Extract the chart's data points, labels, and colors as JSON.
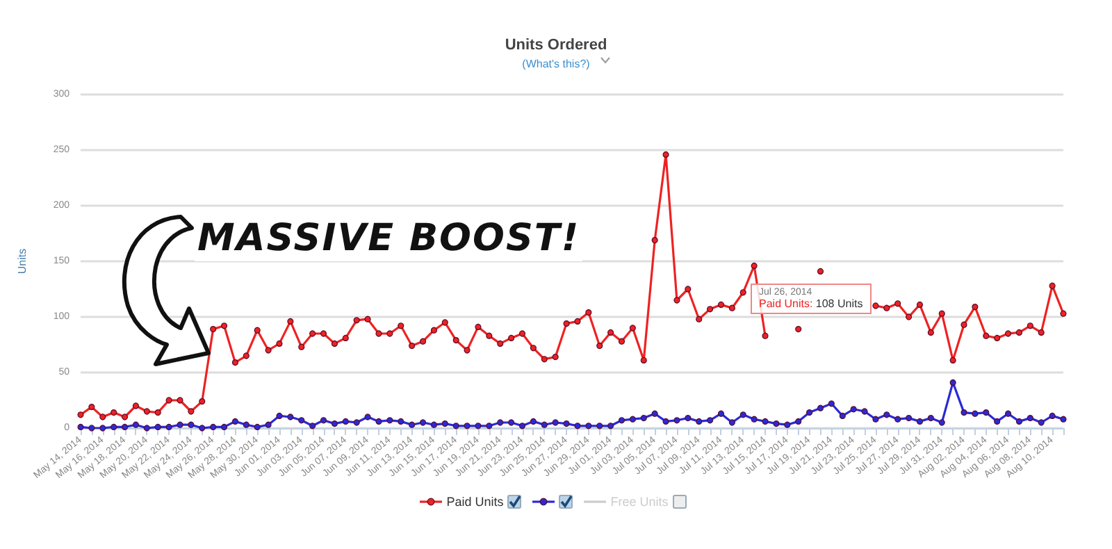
{
  "chart_data": {
    "type": "line",
    "title": "Units Ordered",
    "subtitle": "(What's this?)",
    "ylabel": "Units",
    "categories": [
      "May 14, 2014",
      null,
      "May 16, 2014",
      null,
      "May 18, 2014",
      null,
      "May 20, 2014",
      null,
      "May 22, 2014",
      null,
      "May 24, 2014",
      null,
      "May 26, 2014",
      null,
      "May 28, 2014",
      null,
      "May 30, 2014",
      null,
      "Jun 01, 2014",
      null,
      "Jun 03, 2014",
      null,
      "Jun 05, 2014",
      null,
      "Jun 07, 2014",
      null,
      "Jun 09, 2014",
      null,
      "Jun 11, 2014",
      null,
      "Jun 13, 2014",
      null,
      "Jun 15, 2014",
      null,
      "Jun 17, 2014",
      null,
      "Jun 19, 2014",
      null,
      "Jun 21, 2014",
      null,
      "Jun 23, 2014",
      null,
      "Jun 25, 2014",
      null,
      "Jun 27, 2014",
      null,
      "Jun 29, 2014",
      null,
      "Jul 01, 2014",
      null,
      "Jul 03, 2014",
      null,
      "Jul 05, 2014",
      null,
      "Jul 07, 2014",
      null,
      "Jul 09, 2014",
      null,
      "Jul 11, 2014",
      null,
      "Jul 13, 2014",
      null,
      "Jul 15, 2014",
      null,
      "Jul 17, 2014",
      null,
      "Jul 19, 2014",
      null,
      "Jul 21, 2014",
      null,
      "Jul 23, 2014",
      null,
      "Jul 25, 2014",
      null,
      "Jul 27, 2014",
      null,
      "Jul 29, 2014",
      null,
      "Jul 31, 2014",
      null,
      "Aug 02, 2014",
      null,
      "Aug 04, 2014",
      null,
      "Aug 06, 2014",
      null,
      "Aug 08, 2014",
      null,
      "Aug 10, 2014",
      null
    ],
    "series": [
      {
        "name": "Paid Units",
        "color": "#ee2222",
        "values": [
          12,
          19,
          10,
          14,
          10,
          20,
          15,
          14,
          25,
          25,
          15,
          24,
          89,
          92,
          59,
          65,
          88,
          70,
          76,
          96,
          73,
          85,
          85,
          76,
          81,
          97,
          98,
          85,
          85,
          92,
          74,
          78,
          88,
          95,
          79,
          70,
          91,
          83,
          76,
          81,
          85,
          72,
          62,
          64,
          94,
          96,
          104,
          74,
          86,
          78,
          90,
          61,
          169,
          246,
          115,
          125,
          98,
          107,
          111,
          108,
          122,
          146,
          83,
          null,
          null,
          89,
          null,
          141,
          null,
          null,
          null,
          null,
          110,
          108,
          112,
          100,
          111,
          86,
          103,
          61,
          93,
          109,
          83,
          81,
          85,
          86,
          92,
          86,
          128,
          103
        ]
      },
      {
        "color": "#2a2ad8",
        "values": [
          1,
          0,
          0,
          1,
          1,
          3,
          0,
          1,
          1,
          3,
          3,
          0,
          1,
          1,
          6,
          3,
          1,
          3,
          11,
          10,
          7,
          2,
          7,
          4,
          6,
          5,
          10,
          6,
          7,
          6,
          3,
          5,
          3,
          4,
          2,
          2,
          2,
          2,
          5,
          5,
          2,
          6,
          3,
          5,
          4,
          2,
          2,
          2,
          2,
          7,
          8,
          9,
          13,
          6,
          7,
          9,
          6,
          7,
          13,
          5,
          12,
          8,
          6,
          4,
          3,
          6,
          14,
          18,
          22,
          11,
          17,
          15,
          8,
          12,
          8,
          9,
          6,
          9,
          5,
          41,
          14,
          13,
          14,
          6,
          13,
          6,
          9,
          5,
          11,
          8
        ]
      },
      {
        "name": "Free Units",
        "color": "#cccccc",
        "values": [
          null,
          null,
          null,
          null,
          null,
          null,
          null,
          null,
          null,
          null,
          null,
          null,
          null,
          null,
          null,
          null,
          null,
          null,
          null,
          null,
          null,
          null,
          null,
          null,
          null,
          null,
          null,
          null,
          null,
          null,
          null,
          null,
          null,
          null,
          null,
          null,
          null,
          null,
          null,
          null,
          null,
          null,
          null,
          null,
          null,
          null,
          null,
          null,
          null,
          null,
          null,
          null,
          null,
          null,
          null,
          null,
          null,
          null,
          null,
          null,
          null,
          null,
          null,
          null,
          null,
          null,
          null,
          null,
          null,
          null,
          null,
          null,
          null,
          null,
          null,
          null,
          null,
          null,
          null,
          null,
          null,
          null,
          null,
          null,
          null,
          null,
          null,
          null,
          null,
          null
        ]
      }
    ],
    "ylim": [
      0,
      300
    ],
    "yticks": [
      0,
      50,
      100,
      150,
      200,
      250,
      300
    ],
    "grid": "y",
    "legend": "bottom",
    "marker": "circle",
    "line_style": "solid",
    "annotations": [
      "MASSIVE BOOST!",
      "Jul 26, 2014\nPaid Units: 108 Units"
    ]
  }
}
